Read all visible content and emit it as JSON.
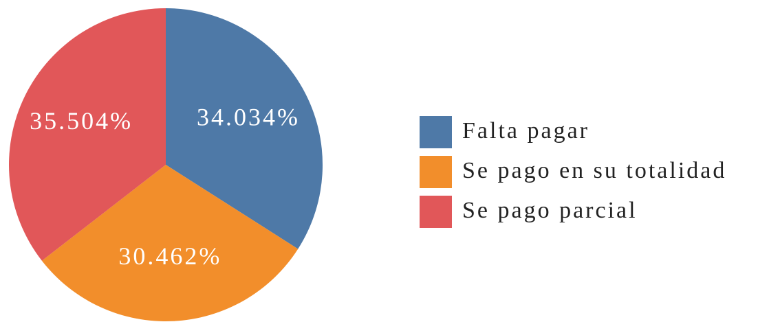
{
  "chart_data": {
    "type": "pie",
    "categories": [
      "Falta pagar",
      "Se pago en su totalidad",
      "Se pago parcial"
    ],
    "values": [
      34.034,
      30.462,
      35.504
    ],
    "value_labels": [
      "34.034%",
      "30.462%",
      "35.504%"
    ],
    "colors": [
      "#4e79a7",
      "#f28e2b",
      "#e15759"
    ],
    "legend": "right"
  }
}
